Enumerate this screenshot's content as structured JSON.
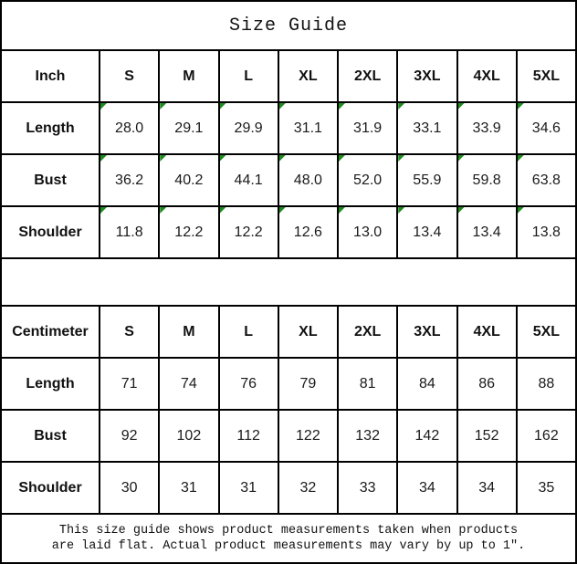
{
  "title": "Size Guide",
  "marker_color": "#1f8b1f",
  "tables": [
    {
      "unit_label": "Inch",
      "sizes": [
        "S",
        "M",
        "L",
        "XL",
        "2XL",
        "3XL",
        "4XL",
        "5XL"
      ],
      "corner_markers": true,
      "rows": [
        {
          "label": "Length",
          "values": [
            "28.0",
            "29.1",
            "29.9",
            "31.1",
            "31.9",
            "33.1",
            "33.9",
            "34.6"
          ]
        },
        {
          "label": "Bust",
          "values": [
            "36.2",
            "40.2",
            "44.1",
            "48.0",
            "52.0",
            "55.9",
            "59.8",
            "63.8"
          ]
        },
        {
          "label": "Shoulder",
          "values": [
            "11.8",
            "12.2",
            "12.2",
            "12.6",
            "13.0",
            "13.4",
            "13.4",
            "13.8"
          ]
        }
      ]
    },
    {
      "unit_label": "Centimeter",
      "sizes": [
        "S",
        "M",
        "L",
        "XL",
        "2XL",
        "3XL",
        "4XL",
        "5XL"
      ],
      "corner_markers": false,
      "rows": [
        {
          "label": "Length",
          "values": [
            "71",
            "74",
            "76",
            "79",
            "81",
            "84",
            "86",
            "88"
          ]
        },
        {
          "label": "Bust",
          "values": [
            "92",
            "102",
            "112",
            "122",
            "132",
            "142",
            "152",
            "162"
          ]
        },
        {
          "label": "Shoulder",
          "values": [
            "30",
            "31",
            "31",
            "32",
            "33",
            "34",
            "34",
            "35"
          ]
        }
      ]
    }
  ],
  "footer": {
    "line1": "This size guide shows product measurements taken when products",
    "line2": "are laid flat. Actual product measurements may vary by up to 1″."
  }
}
